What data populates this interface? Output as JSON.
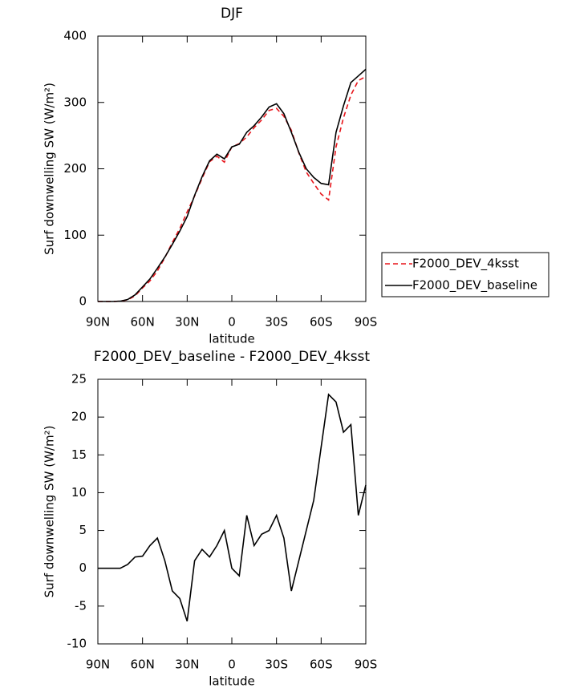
{
  "chart_data": [
    {
      "type": "line",
      "title": "DJF",
      "x_label": "latitude",
      "y_label": "Surf downwelling SW (W/m²)",
      "x": [
        90,
        85,
        80,
        75,
        70,
        65,
        60,
        55,
        50,
        45,
        40,
        35,
        30,
        25,
        20,
        15,
        10,
        5,
        0,
        -5,
        -10,
        -15,
        -20,
        -25,
        -30,
        -35,
        -40,
        -45,
        -50,
        -55,
        -60,
        -65,
        -70,
        -75,
        -80,
        -85,
        -90
      ],
      "xlim": [
        90,
        -90
      ],
      "xticks": [
        {
          "value": 90,
          "label": "90N"
        },
        {
          "value": 60,
          "label": "60N"
        },
        {
          "value": 30,
          "label": "30N"
        },
        0,
        {
          "value": -30,
          "label": "30S"
        },
        {
          "value": -60,
          "label": "60S"
        },
        {
          "value": -90,
          "label": "90S"
        }
      ],
      "ylim": [
        0,
        400
      ],
      "yticks": [
        0,
        100,
        200,
        300,
        400
      ],
      "series": [
        {
          "name": "F2000_DEV_4ksst",
          "color": "#e8161c",
          "style": "dashed",
          "values": [
            0,
            0,
            0,
            0.5,
            2.5,
            8.5,
            20.4,
            31,
            46,
            66,
            89,
            110,
            135,
            159,
            185.5,
            210.5,
            219,
            210,
            233,
            238,
            248,
            262,
            273.5,
            288,
            291,
            279,
            258,
            224,
            195,
            178,
            162,
            153,
            233,
            277,
            311,
            333,
            339
          ]
        },
        {
          "name": "F2000_DEV_baseline",
          "color": "#000000",
          "style": "solid",
          "values": [
            0,
            0,
            0,
            0.5,
            3,
            10,
            22,
            34,
            50,
            67,
            86,
            106,
            128,
            160,
            188,
            212,
            222,
            215,
            233,
            237,
            255,
            265,
            278,
            293,
            298,
            283,
            255,
            225,
            200,
            187,
            178,
            176,
            255,
            295,
            330,
            340,
            350
          ]
        }
      ]
    },
    {
      "type": "line",
      "title": "F2000_DEV_baseline - F2000_DEV_4ksst",
      "x_label": "latitude",
      "y_label": "Surf downwelling SW (W/m²)",
      "x": [
        90,
        85,
        80,
        75,
        70,
        65,
        60,
        55,
        50,
        45,
        40,
        35,
        30,
        25,
        20,
        15,
        10,
        5,
        0,
        -5,
        -10,
        -15,
        -20,
        -25,
        -30,
        -35,
        -40,
        -45,
        -50,
        -55,
        -60,
        -65,
        -70,
        -75,
        -80,
        -85,
        -90
      ],
      "xlim": [
        90,
        -90
      ],
      "xticks": [
        {
          "value": 90,
          "label": "90N"
        },
        {
          "value": 60,
          "label": "60N"
        },
        {
          "value": 30,
          "label": "30N"
        },
        0,
        {
          "value": -30,
          "label": "30S"
        },
        {
          "value": -60,
          "label": "60S"
        },
        {
          "value": -90,
          "label": "90S"
        }
      ],
      "ylim": [
        -10,
        25
      ],
      "yticks": [
        -10,
        -5,
        0,
        5,
        10,
        15,
        20,
        25
      ],
      "color": "#000000",
      "values": [
        0,
        0,
        0,
        0,
        0.5,
        1.5,
        1.6,
        3,
        4,
        1,
        -3,
        -4,
        -7,
        1,
        2.5,
        1.5,
        3,
        5,
        0,
        -1,
        7,
        3,
        4.5,
        5,
        7,
        4,
        -3,
        1,
        5,
        9,
        16,
        23,
        22,
        18,
        19,
        7,
        11
      ]
    }
  ]
}
